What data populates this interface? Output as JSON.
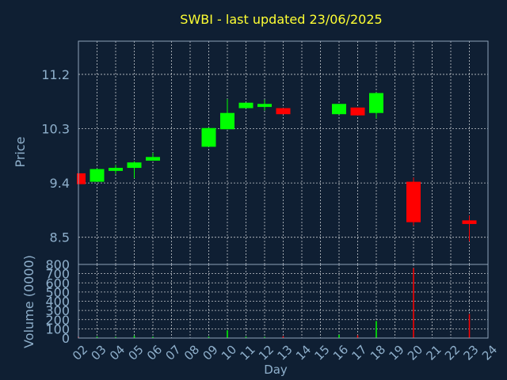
{
  "chart_data": [
    {
      "type": "candlestick",
      "title": "SWBI - last updated 23/06/2025",
      "ylabel": "Price",
      "ylim": [
        8.05,
        11.75
      ],
      "yticks": [
        "8.5",
        "9.4",
        "10.3",
        "11.2"
      ],
      "x": [
        "02",
        "03",
        "04",
        "05",
        "06",
        "07",
        "08",
        "09",
        "10",
        "11",
        "12",
        "13",
        "14",
        "15",
        "16",
        "17",
        "18",
        "19",
        "20",
        "21",
        "22",
        "23",
        "24"
      ],
      "candles": [
        {
          "day": "02",
          "open": 9.56,
          "close": 9.38,
          "high": 9.56,
          "low": 9.38
        },
        {
          "day": "03",
          "open": 9.42,
          "close": 9.63,
          "high": 9.64,
          "low": 9.42
        },
        {
          "day": "04",
          "open": 9.6,
          "close": 9.65,
          "high": 9.7,
          "low": 9.55
        },
        {
          "day": "05",
          "open": 9.65,
          "close": 9.74,
          "high": 9.76,
          "low": 9.48
        },
        {
          "day": "06",
          "open": 9.77,
          "close": 9.83,
          "high": 9.9,
          "low": 9.77
        },
        {
          "day": "09",
          "open": 10.0,
          "close": 10.31,
          "high": 10.32,
          "low": 10.0
        },
        {
          "day": "10",
          "open": 10.29,
          "close": 10.56,
          "high": 10.79,
          "low": 10.29
        },
        {
          "day": "11",
          "open": 10.64,
          "close": 10.73,
          "high": 10.73,
          "low": 10.64
        },
        {
          "day": "12",
          "open": 10.66,
          "close": 10.71,
          "high": 10.78,
          "low": 10.6
        },
        {
          "day": "13",
          "open": 10.64,
          "close": 10.54,
          "high": 10.64,
          "low": 10.54
        },
        {
          "day": "16",
          "open": 10.54,
          "close": 10.71,
          "high": 10.71,
          "low": 10.54
        },
        {
          "day": "17",
          "open": 10.65,
          "close": 10.52,
          "high": 10.65,
          "low": 10.52
        },
        {
          "day": "18",
          "open": 10.56,
          "close": 10.89,
          "high": 10.9,
          "low": 10.47
        },
        {
          "day": "20",
          "open": 9.42,
          "close": 8.75,
          "high": 9.49,
          "low": 8.69
        },
        {
          "day": "23",
          "open": 8.78,
          "close": 8.72,
          "high": 8.86,
          "low": 8.43
        }
      ],
      "up_color": "#00ff00",
      "down_color": "#ff0000",
      "grid": true
    },
    {
      "type": "bar",
      "ylabel": "Volume (0000)",
      "xlabel": "Day",
      "ylim": [
        0,
        800
      ],
      "yticks": [
        "0",
        "100",
        "200",
        "300",
        "400",
        "500",
        "600",
        "700",
        "800"
      ],
      "x": [
        "02",
        "03",
        "04",
        "05",
        "06",
        "07",
        "08",
        "09",
        "10",
        "11",
        "12",
        "13",
        "14",
        "15",
        "16",
        "17",
        "18",
        "19",
        "20",
        "21",
        "22",
        "23",
        "24"
      ],
      "bars": [
        {
          "day": "02",
          "value": 15,
          "dir": "down"
        },
        {
          "day": "03",
          "value": 15,
          "dir": "up"
        },
        {
          "day": "04",
          "value": 12,
          "dir": "up"
        },
        {
          "day": "05",
          "value": 25,
          "dir": "up"
        },
        {
          "day": "06",
          "value": 14,
          "dir": "up"
        },
        {
          "day": "09",
          "value": 15,
          "dir": "up"
        },
        {
          "day": "10",
          "value": 85,
          "dir": "up"
        },
        {
          "day": "11",
          "value": 15,
          "dir": "up"
        },
        {
          "day": "12",
          "value": 12,
          "dir": "up"
        },
        {
          "day": "13",
          "value": 20,
          "dir": "down"
        },
        {
          "day": "16",
          "value": 35,
          "dir": "up"
        },
        {
          "day": "17",
          "value": 30,
          "dir": "down"
        },
        {
          "day": "18",
          "value": 185,
          "dir": "up"
        },
        {
          "day": "20",
          "value": 760,
          "dir": "down"
        },
        {
          "day": "23",
          "value": 260,
          "dir": "down"
        }
      ],
      "grid": true
    }
  ]
}
